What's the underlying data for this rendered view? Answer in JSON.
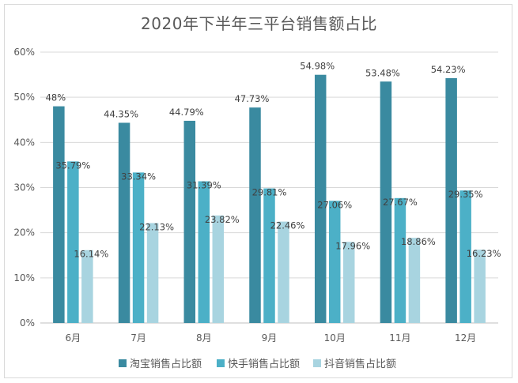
{
  "chart_data": {
    "type": "bar",
    "title": "2020年下半年三平台销售额占比",
    "categories": [
      "6月",
      "7月",
      "8月",
      "9月",
      "10月",
      "11月",
      "12月"
    ],
    "y_ticks": [
      "0%",
      "10%",
      "20%",
      "30%",
      "40%",
      "50%",
      "60%"
    ],
    "ylim": [
      0,
      60
    ],
    "grid": true,
    "legend_position": "bottom",
    "series": [
      {
        "name": "淘宝销售占比额",
        "color": "#3a8aa0",
        "values": [
          48,
          44.35,
          44.79,
          47.73,
          54.98,
          53.48,
          54.23
        ],
        "labels": [
          "48%",
          "44.35%",
          "44.79%",
          "47.73%",
          "54.98%",
          "53.48%",
          "54.23%"
        ]
      },
      {
        "name": "快手销售占比额",
        "color": "#4cb0c7",
        "values": [
          35.79,
          33.34,
          31.39,
          29.81,
          27.06,
          27.67,
          29.35
        ],
        "labels": [
          "35.79%",
          "33.34%",
          "31.39%",
          "29.81%",
          "27.06%",
          "27.67%",
          "29.35%"
        ]
      },
      {
        "name": "抖音销售占比额",
        "color": "#a8d4e0",
        "values": [
          16.14,
          22.13,
          23.82,
          22.46,
          17.96,
          18.86,
          16.23
        ],
        "labels": [
          "16.14%",
          "22.13%",
          "23.82%",
          "22.46%",
          "17.96%",
          "18.86%",
          "16.23%"
        ]
      }
    ]
  }
}
